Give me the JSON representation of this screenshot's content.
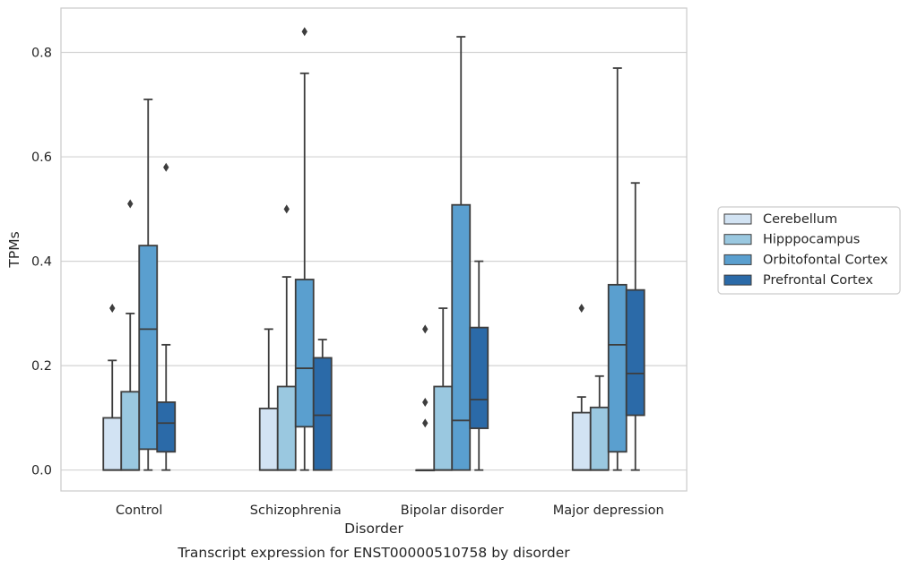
{
  "caption": "Transcript expression for ENST00000510758 by disorder",
  "chart_data": {
    "type": "boxplot",
    "xlabel": "Disorder",
    "ylabel": "TPMs",
    "categories": [
      "Control",
      "Schizophrenia",
      "Bipolar disorder",
      "Major depression"
    ],
    "ylim": [
      -0.04,
      0.885
    ],
    "yticks": [
      0.0,
      0.2,
      0.4,
      0.6,
      0.8
    ],
    "ytick_labels": [
      "0.0",
      "0.2",
      "0.4",
      "0.6",
      "0.8"
    ],
    "grid": "horizontal",
    "legend_position": "right",
    "series": [
      {
        "name": "Cerebellum",
        "color": "#d2e3f3",
        "boxes": [
          {
            "q1": 0.0,
            "median": 0.0,
            "q3": 0.1,
            "whisker_low": 0.0,
            "whisker_high": 0.21,
            "outliers": [
              0.31
            ]
          },
          {
            "q1": 0.0,
            "median": 0.0,
            "q3": 0.118,
            "whisker_low": 0.0,
            "whisker_high": 0.27,
            "outliers": []
          },
          {
            "q1": 0.0,
            "median": 0.0,
            "q3": 0.0,
            "whisker_low": 0.0,
            "whisker_high": 0.0,
            "outliers": [
              0.09,
              0.13,
              0.27
            ]
          },
          {
            "q1": 0.0,
            "median": 0.0,
            "q3": 0.11,
            "whisker_low": 0.0,
            "whisker_high": 0.14,
            "outliers": [
              0.31
            ]
          }
        ]
      },
      {
        "name": "Hipppocampus",
        "color": "#9ac8e0",
        "boxes": [
          {
            "q1": 0.0,
            "median": 0.0,
            "q3": 0.15,
            "whisker_low": 0.0,
            "whisker_high": 0.3,
            "outliers": [
              0.51
            ]
          },
          {
            "q1": 0.0,
            "median": 0.0,
            "q3": 0.16,
            "whisker_low": 0.0,
            "whisker_high": 0.37,
            "outliers": [
              0.5
            ]
          },
          {
            "q1": 0.0,
            "median": 0.0,
            "q3": 0.16,
            "whisker_low": 0.0,
            "whisker_high": 0.31,
            "outliers": []
          },
          {
            "q1": 0.0,
            "median": 0.0,
            "q3": 0.12,
            "whisker_low": 0.0,
            "whisker_high": 0.18,
            "outliers": []
          }
        ]
      },
      {
        "name": "Orbitofontal Cortex",
        "color": "#5a9fcf",
        "boxes": [
          {
            "q1": 0.04,
            "median": 0.27,
            "q3": 0.43,
            "whisker_low": 0.0,
            "whisker_high": 0.71,
            "outliers": []
          },
          {
            "q1": 0.083,
            "median": 0.195,
            "q3": 0.365,
            "whisker_low": 0.0,
            "whisker_high": 0.76,
            "outliers": [
              0.84
            ]
          },
          {
            "q1": 0.0,
            "median": 0.095,
            "q3": 0.508,
            "whisker_low": 0.0,
            "whisker_high": 0.83,
            "outliers": []
          },
          {
            "q1": 0.035,
            "median": 0.24,
            "q3": 0.355,
            "whisker_low": 0.0,
            "whisker_high": 0.77,
            "outliers": []
          }
        ]
      },
      {
        "name": "Prefrontal Cortex",
        "color": "#2b6aa8",
        "boxes": [
          {
            "q1": 0.035,
            "median": 0.09,
            "q3": 0.13,
            "whisker_low": 0.0,
            "whisker_high": 0.24,
            "outliers": [
              0.58
            ]
          },
          {
            "q1": 0.0,
            "median": 0.105,
            "q3": 0.215,
            "whisker_low": 0.0,
            "whisker_high": 0.25,
            "outliers": []
          },
          {
            "q1": 0.08,
            "median": 0.135,
            "q3": 0.273,
            "whisker_low": 0.0,
            "whisker_high": 0.4,
            "outliers": []
          },
          {
            "q1": 0.105,
            "median": 0.185,
            "q3": 0.345,
            "whisker_low": 0.0,
            "whisker_high": 0.55,
            "outliers": []
          }
        ]
      }
    ]
  }
}
